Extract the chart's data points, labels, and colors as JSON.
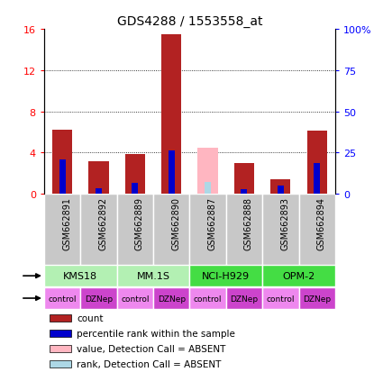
{
  "title": "GDS4288 / 1553558_at",
  "samples": [
    "GSM662891",
    "GSM662892",
    "GSM662889",
    "GSM662890",
    "GSM662887",
    "GSM662888",
    "GSM662893",
    "GSM662894"
  ],
  "count_values": [
    6.2,
    3.2,
    3.9,
    15.5,
    0,
    3.0,
    1.4,
    6.1
  ],
  "rank_values": [
    3.3,
    0.55,
    1.1,
    4.2,
    0,
    0.5,
    0.8,
    3.0
  ],
  "absent_count_values": [
    0,
    0,
    0,
    0,
    4.5,
    0,
    0,
    0
  ],
  "absent_rank_values": [
    0,
    0,
    0,
    0,
    1.2,
    0,
    0,
    0
  ],
  "count_color": "#b22222",
  "rank_color": "#0000cc",
  "absent_count_color": "#ffb6c1",
  "absent_rank_color": "#add8e6",
  "ylim_left": [
    0,
    16
  ],
  "ylim_right": [
    0,
    100
  ],
  "yticks_left": [
    0,
    4,
    8,
    12,
    16
  ],
  "ytick_labels_left": [
    "0",
    "4",
    "8",
    "12",
    "16"
  ],
  "yticks_right": [
    0,
    25,
    50,
    75,
    100
  ],
  "ytick_labels_right": [
    "0",
    "25",
    "50",
    "75",
    "100%"
  ],
  "cell_lines": [
    {
      "label": "KMS18",
      "start": 0,
      "end": 2,
      "color": "#b3f0b3"
    },
    {
      "label": "MM.1S",
      "start": 2,
      "end": 4,
      "color": "#b3f0b3"
    },
    {
      "label": "NCI-H929",
      "start": 4,
      "end": 6,
      "color": "#44dd44"
    },
    {
      "label": "OPM-2",
      "start": 6,
      "end": 8,
      "color": "#44dd44"
    }
  ],
  "agents": [
    "control",
    "DZNep",
    "control",
    "DZNep",
    "control",
    "DZNep",
    "control",
    "DZNep"
  ],
  "agent_color_control": "#ee88ee",
  "agent_color_DZNep": "#cc44cc",
  "sample_bg_color": "#c8c8c8",
  "bar_width": 0.55,
  "legend_items": [
    {
      "label": "count",
      "color": "#b22222"
    },
    {
      "label": "percentile rank within the sample",
      "color": "#0000cc"
    },
    {
      "label": "value, Detection Call = ABSENT",
      "color": "#ffb6c1"
    },
    {
      "label": "rank, Detection Call = ABSENT",
      "color": "#add8e6"
    }
  ]
}
